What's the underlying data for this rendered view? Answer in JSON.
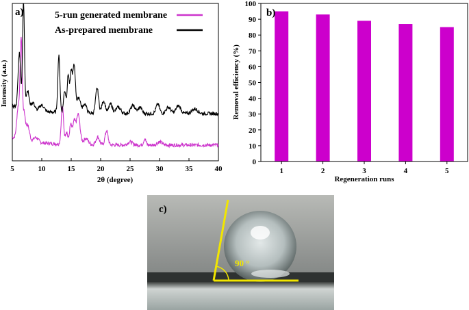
{
  "colors": {
    "magenta": "#cc33cc",
    "bar": "#cc00cc",
    "black": "#000000",
    "contact_line": "#f2e600",
    "angle_text": "#f2e600"
  },
  "panel_c": {
    "label": "c)",
    "angle_label": "90 °",
    "contact_angle_deg": 90
  },
  "chart_data": [
    {
      "panel": "a)",
      "type": "line",
      "title": "",
      "xlabel": "2θ (degree)",
      "ylabel": "Intensity (a.u.)",
      "xlim": [
        5,
        40
      ],
      "x_ticks": [
        5,
        10,
        15,
        20,
        25,
        30,
        35,
        40
      ],
      "y_ticks_shown": false,
      "legend_position": "top-right",
      "series": [
        {
          "name": "5-run generated membrane",
          "color": "#cc33cc",
          "baseline": 0.1,
          "peaks": [
            {
              "x": 6.0,
              "h": 0.2,
              "w": 0.25
            },
            {
              "x": 6.5,
              "h": 0.62,
              "w": 0.18
            },
            {
              "x": 7.0,
              "h": 0.16,
              "w": 0.2
            },
            {
              "x": 7.6,
              "h": 0.1,
              "w": 0.3
            },
            {
              "x": 9.0,
              "h": 0.03,
              "w": 0.4
            },
            {
              "x": 13.5,
              "h": 0.24,
              "w": 0.2
            },
            {
              "x": 14.2,
              "h": 0.08,
              "w": 0.2
            },
            {
              "x": 14.9,
              "h": 0.12,
              "w": 0.2
            },
            {
              "x": 15.5,
              "h": 0.14,
              "w": 0.25
            },
            {
              "x": 16.2,
              "h": 0.19,
              "w": 0.3
            },
            {
              "x": 17.5,
              "h": 0.04,
              "w": 0.4
            },
            {
              "x": 19.5,
              "h": 0.05,
              "w": 0.3
            },
            {
              "x": 21.0,
              "h": 0.09,
              "w": 0.25
            },
            {
              "x": 25.0,
              "h": 0.02,
              "w": 0.4
            },
            {
              "x": 27.5,
              "h": 0.04,
              "w": 0.2
            },
            {
              "x": 30.0,
              "h": 0.02,
              "w": 0.4
            }
          ]
        },
        {
          "name": "As-prepared membrane",
          "color": "#000000",
          "baseline": 0.3,
          "peaks": [
            {
              "x": 6.2,
              "h": 0.35,
              "w": 0.22
            },
            {
              "x": 6.9,
              "h": 0.68,
              "w": 0.16
            },
            {
              "x": 7.6,
              "h": 0.12,
              "w": 0.25
            },
            {
              "x": 8.5,
              "h": 0.05,
              "w": 0.3
            },
            {
              "x": 10.0,
              "h": 0.04,
              "w": 0.4
            },
            {
              "x": 12.9,
              "h": 0.36,
              "w": 0.18
            },
            {
              "x": 13.9,
              "h": 0.14,
              "w": 0.2
            },
            {
              "x": 14.5,
              "h": 0.24,
              "w": 0.18
            },
            {
              "x": 15.0,
              "h": 0.25,
              "w": 0.18
            },
            {
              "x": 15.5,
              "h": 0.3,
              "w": 0.22
            },
            {
              "x": 16.3,
              "h": 0.1,
              "w": 0.3
            },
            {
              "x": 17.3,
              "h": 0.06,
              "w": 0.3
            },
            {
              "x": 19.4,
              "h": 0.16,
              "w": 0.25
            },
            {
              "x": 20.5,
              "h": 0.08,
              "w": 0.3
            },
            {
              "x": 21.7,
              "h": 0.06,
              "w": 0.3
            },
            {
              "x": 23.0,
              "h": 0.04,
              "w": 0.4
            },
            {
              "x": 25.5,
              "h": 0.05,
              "w": 0.4
            },
            {
              "x": 26.7,
              "h": 0.04,
              "w": 0.3
            },
            {
              "x": 29.7,
              "h": 0.06,
              "w": 0.3
            },
            {
              "x": 31.5,
              "h": 0.04,
              "w": 0.4
            },
            {
              "x": 33.2,
              "h": 0.05,
              "w": 0.4
            },
            {
              "x": 36.0,
              "h": 0.03,
              "w": 0.5
            }
          ]
        }
      ]
    },
    {
      "panel": "b)",
      "type": "bar",
      "title": "",
      "xlabel": "Regeneration runs",
      "ylabel": "Removal efficiency (%)",
      "categories": [
        "1",
        "2",
        "3",
        "4",
        "5"
      ],
      "values": [
        95,
        93,
        89,
        87,
        85
      ],
      "ylim": [
        0,
        100
      ],
      "y_ticks": [
        0,
        10,
        20,
        30,
        40,
        50,
        60,
        70,
        80,
        90,
        100
      ],
      "bar_color": "#cc00cc",
      "grid": false
    }
  ]
}
